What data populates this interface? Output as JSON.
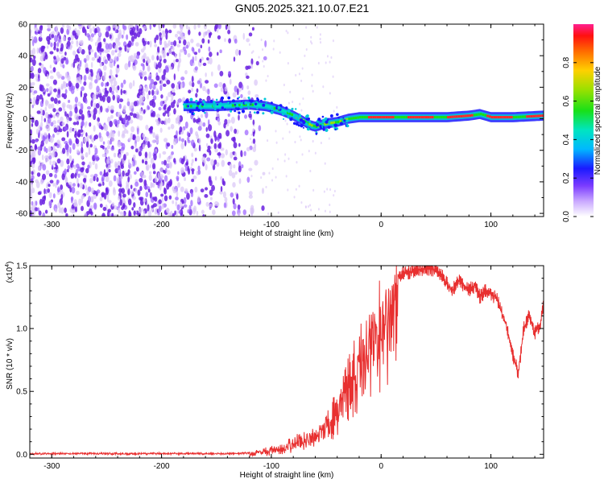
{
  "title": "GN05.2025.321.10.07.E21",
  "chart_data": [
    {
      "type": "heatmap",
      "name": "spectrogram",
      "xlabel": "Height of straight line (km)",
      "ylabel": "Frequency (Hz)",
      "xlim": [
        -320,
        148
      ],
      "ylim": [
        -62,
        60
      ],
      "xticks": [
        -300,
        -200,
        -100,
        0,
        100
      ],
      "xtick_labels": [
        "-300",
        "-200",
        "-100",
        "0",
        "100"
      ],
      "yticks": [
        -60,
        -40,
        -20,
        0,
        20,
        40,
        60
      ],
      "ytick_labels": [
        "-60",
        "-40",
        "-20",
        "0",
        "20",
        "40",
        "60"
      ],
      "noise_region_x": [
        -320,
        -110
      ],
      "signal_track": {
        "x": [
          -180,
          -150,
          -120,
          -105,
          -90,
          -80,
          -72,
          -65,
          -60,
          -55,
          -50,
          -40,
          -30,
          -20,
          0,
          20,
          40,
          60,
          80,
          90,
          100,
          120,
          148
        ],
        "y": [
          8,
          8,
          9,
          8,
          5,
          2,
          -1,
          -4,
          -5,
          -4,
          -3,
          -2,
          0,
          1,
          1,
          1,
          1,
          1,
          2,
          3,
          1,
          1,
          2
        ]
      },
      "colorbar": {
        "label": "Normalized spectral amplitude",
        "range": [
          0,
          1
        ],
        "ticks": [
          0.0,
          0.2,
          0.4,
          0.6,
          0.8
        ],
        "tick_labels": [
          "0.0",
          "0.2",
          "0.4",
          "0.6",
          "0.8"
        ]
      }
    },
    {
      "type": "line",
      "name": "snr",
      "xlabel": "Height of straight line (km)",
      "ylabel": "SNR (10 * v/v)",
      "y_multiplier_label": "(x10",
      "y_multiplier_exponent": "4",
      "xlim": [
        -320,
        148
      ],
      "ylim": [
        -0.03,
        1.5
      ],
      "xticks": [
        -300,
        -200,
        -100,
        0,
        100
      ],
      "xtick_labels": [
        "-300",
        "-200",
        "-100",
        "0",
        "100"
      ],
      "yticks": [
        0.0,
        0.5,
        1.0,
        1.5
      ],
      "ytick_labels": [
        "0.0",
        "0.5",
        "1.0",
        "1.5"
      ],
      "color": "#e83030",
      "series": [
        {
          "name": "SNR",
          "x": [
            -320,
            -250,
            -200,
            -130,
            -115,
            -105,
            -95,
            -85,
            -75,
            -65,
            -55,
            -45,
            -38,
            -30,
            -22,
            -15,
            -10,
            -5,
            0,
            5,
            10,
            15,
            20,
            25,
            30,
            40,
            50,
            55,
            60,
            65,
            70,
            75,
            80,
            85,
            90,
            95,
            100,
            105,
            110,
            115,
            120,
            125,
            130,
            135,
            140,
            145,
            148
          ],
          "values": [
            0.01,
            0.01,
            0.01,
            0.01,
            0.02,
            0.04,
            0.06,
            0.1,
            0.14,
            0.18,
            0.22,
            0.35,
            0.5,
            0.65,
            0.85,
            1.0,
            1.1,
            1.2,
            1.3,
            1.35,
            1.4,
            1.42,
            1.43,
            1.45,
            1.46,
            1.48,
            1.47,
            1.42,
            1.36,
            1.3,
            1.38,
            1.35,
            1.3,
            1.34,
            1.25,
            1.3,
            1.28,
            1.24,
            1.12,
            1.0,
            0.78,
            0.65,
            1.0,
            1.1,
            0.96,
            1.03,
            1.18
          ]
        }
      ]
    }
  ],
  "colors": {
    "heatmap_noise_dark": "#6a20e0",
    "heatmap_noise_light": "#d9c4f7",
    "snr_line": "#e83030"
  }
}
